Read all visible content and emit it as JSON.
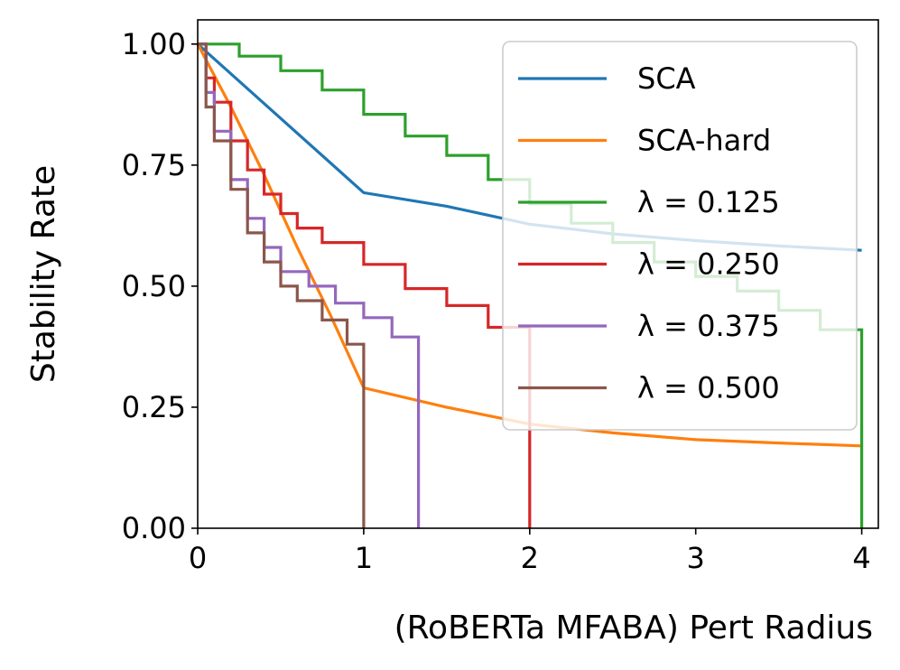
{
  "chart_data": {
    "type": "line",
    "title": "",
    "xlabel": "(RoBERTa MFABA) Pert Radius",
    "ylabel": "Stability Rate",
    "xlim": [
      0,
      4.1
    ],
    "ylim": [
      0,
      1.05
    ],
    "xticks": [
      0,
      1,
      2,
      3,
      4
    ],
    "xtick_labels": [
      "0",
      "1",
      "2",
      "3",
      "4"
    ],
    "yticks": [
      0,
      0.25,
      0.5,
      0.75,
      1.0
    ],
    "ytick_labels": [
      "0.00",
      "0.25",
      "0.50",
      "0.75",
      "1.00"
    ],
    "grid": false,
    "legend_position": "upper right",
    "series": [
      {
        "name": "SCA",
        "color": "#1f77b4",
        "step": false,
        "points": [
          [
            0,
            1.0
          ],
          [
            1.0,
            0.693
          ],
          [
            1.5,
            0.665
          ],
          [
            2.0,
            0.628
          ],
          [
            2.5,
            0.608
          ],
          [
            3.0,
            0.594
          ],
          [
            3.5,
            0.583
          ],
          [
            4.0,
            0.574
          ]
        ]
      },
      {
        "name": "SCA-hard",
        "color": "#ff7f0e",
        "step": false,
        "points": [
          [
            0,
            1.0
          ],
          [
            0.2,
            0.87
          ],
          [
            0.4,
            0.73
          ],
          [
            0.6,
            0.58
          ],
          [
            0.8,
            0.44
          ],
          [
            1.0,
            0.29
          ],
          [
            1.5,
            0.25
          ],
          [
            2.0,
            0.215
          ],
          [
            2.5,
            0.197
          ],
          [
            3.0,
            0.183
          ],
          [
            3.5,
            0.176
          ],
          [
            4.0,
            0.17
          ]
        ]
      },
      {
        "name": "λ = 0.125",
        "color": "#2ca02c",
        "step": true,
        "points": [
          [
            0,
            1.0
          ],
          [
            0.25,
            0.975
          ],
          [
            0.5,
            0.945
          ],
          [
            0.75,
            0.905
          ],
          [
            1.0,
            0.855
          ],
          [
            1.25,
            0.81
          ],
          [
            1.5,
            0.77
          ],
          [
            1.75,
            0.72
          ],
          [
            2.0,
            0.67
          ],
          [
            2.25,
            0.63
          ],
          [
            2.5,
            0.59
          ],
          [
            2.75,
            0.55
          ],
          [
            3.0,
            0.52
          ],
          [
            3.25,
            0.49
          ],
          [
            3.5,
            0.45
          ],
          [
            3.75,
            0.41
          ],
          [
            4.0,
            0.35
          ],
          [
            4.0,
            0.0
          ]
        ]
      },
      {
        "name": "λ = 0.250",
        "color": "#d62728",
        "step": true,
        "points": [
          [
            0,
            1.0
          ],
          [
            0.05,
            0.93
          ],
          [
            0.1,
            0.88
          ],
          [
            0.2,
            0.8
          ],
          [
            0.3,
            0.74
          ],
          [
            0.4,
            0.69
          ],
          [
            0.5,
            0.65
          ],
          [
            0.6,
            0.62
          ],
          [
            0.75,
            0.59
          ],
          [
            1.0,
            0.545
          ],
          [
            1.25,
            0.495
          ],
          [
            1.5,
            0.46
          ],
          [
            1.75,
            0.415
          ],
          [
            2.0,
            0.335
          ],
          [
            2.0,
            0.0
          ]
        ]
      },
      {
        "name": "λ = 0.375",
        "color": "#9467bd",
        "step": true,
        "points": [
          [
            0,
            1.0
          ],
          [
            0.05,
            0.9
          ],
          [
            0.1,
            0.82
          ],
          [
            0.2,
            0.72
          ],
          [
            0.3,
            0.64
          ],
          [
            0.4,
            0.58
          ],
          [
            0.5,
            0.53
          ],
          [
            0.67,
            0.5
          ],
          [
            0.83,
            0.465
          ],
          [
            1.0,
            0.435
          ],
          [
            1.17,
            0.395
          ],
          [
            1.33,
            0.335
          ],
          [
            1.33,
            0.0
          ]
        ]
      },
      {
        "name": "λ = 0.500",
        "color": "#8c564b",
        "step": true,
        "points": [
          [
            0,
            1.0
          ],
          [
            0.05,
            0.87
          ],
          [
            0.1,
            0.8
          ],
          [
            0.2,
            0.7
          ],
          [
            0.3,
            0.61
          ],
          [
            0.4,
            0.55
          ],
          [
            0.5,
            0.5
          ],
          [
            0.6,
            0.47
          ],
          [
            0.75,
            0.43
          ],
          [
            0.9,
            0.38
          ],
          [
            1.0,
            0.335
          ],
          [
            1.0,
            0.0
          ]
        ]
      }
    ]
  }
}
